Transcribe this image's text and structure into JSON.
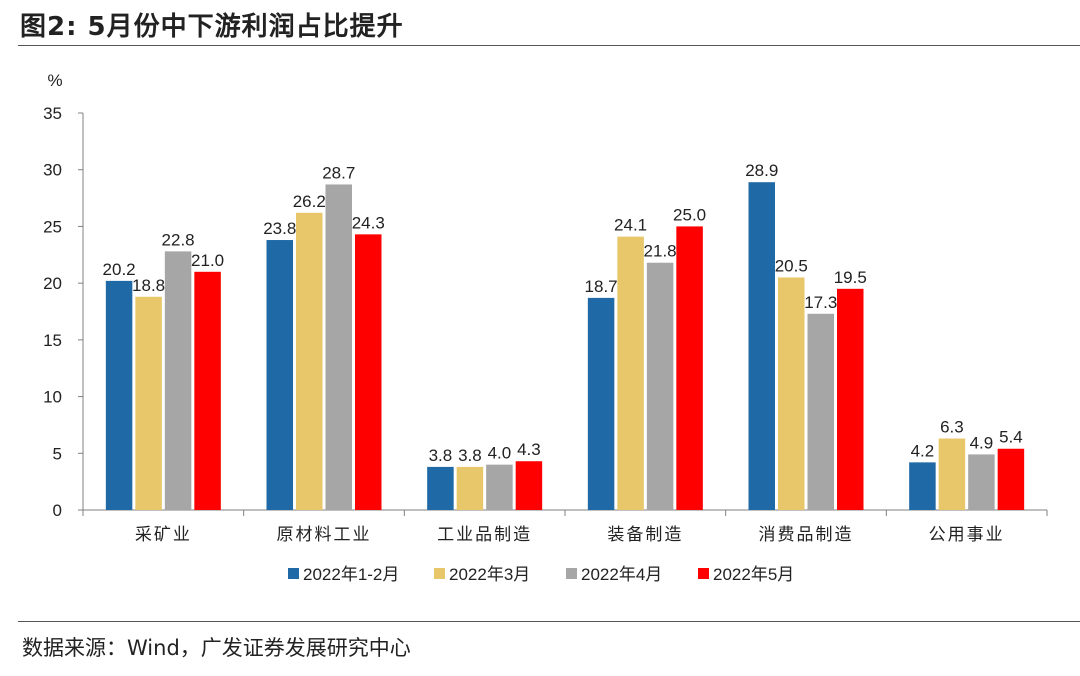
{
  "title": "图2:  5月份中下游利润占比提升",
  "source": "数据来源：Wind，广发证券发展研究中心",
  "chart_data": {
    "type": "bar",
    "ylabel": "%",
    "ylim": [
      0,
      35
    ],
    "yticks": [
      0,
      5,
      10,
      15,
      20,
      25,
      30,
      35
    ],
    "categories": [
      "采矿业",
      "原材料工业",
      "工业品制造",
      "装备制造",
      "消费品制造",
      "公用事业"
    ],
    "series": [
      {
        "name": "2022年1-2月",
        "color": "#1f69a6",
        "values": [
          20.2,
          23.8,
          3.8,
          18.7,
          28.9,
          4.2
        ],
        "labels": [
          "20.2",
          "23.8",
          "3.8",
          "18.7",
          "28.9",
          "4.2"
        ]
      },
      {
        "name": "2022年3月",
        "color": "#e8c66a",
        "values": [
          18.8,
          26.2,
          3.8,
          24.1,
          20.5,
          6.3
        ],
        "labels": [
          "18.8",
          "26.2",
          "3.8",
          "24.1",
          "20.5",
          "6.3"
        ]
      },
      {
        "name": "2022年4月",
        "color": "#a6a6a6",
        "values": [
          22.8,
          28.7,
          4.0,
          21.8,
          17.3,
          4.9
        ],
        "labels": [
          "22.8",
          "28.7",
          "4.0",
          "21.8",
          "17.3",
          "4.9"
        ]
      },
      {
        "name": "2022年5月",
        "color": "#fe0000",
        "values": [
          21.0,
          24.3,
          4.3,
          25.0,
          19.5,
          5.4
        ],
        "labels": [
          "21.0",
          "24.3",
          "4.3",
          "25.0",
          "19.5",
          "5.4"
        ]
      }
    ],
    "legend_position": "bottom",
    "grid": false
  }
}
